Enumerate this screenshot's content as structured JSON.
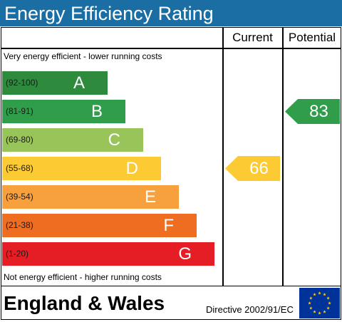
{
  "title": "Energy Efficiency Rating",
  "columns": {
    "current": "Current",
    "potential": "Potential"
  },
  "top_note": "Very energy efficient - lower running costs",
  "bottom_note": "Not energy efficient - higher running costs",
  "footer": {
    "region": "England & Wales",
    "directive": "Directive 2002/91/EC"
  },
  "chart_data": {
    "type": "bar",
    "title": "Energy Efficiency Rating",
    "categories": [
      "A",
      "B",
      "C",
      "D",
      "E",
      "F",
      "G"
    ],
    "bands": [
      {
        "letter": "A",
        "range": "(92-100)",
        "min": 92,
        "max": 100,
        "color": "#2e8a3d"
      },
      {
        "letter": "B",
        "range": "(81-91)",
        "min": 81,
        "max": 91,
        "color": "#2f9d4a"
      },
      {
        "letter": "C",
        "range": "(69-80)",
        "min": 69,
        "max": 80,
        "color": "#99c45a"
      },
      {
        "letter": "D",
        "range": "(55-68)",
        "min": 55,
        "max": 68,
        "color": "#fccb33"
      },
      {
        "letter": "E",
        "range": "(39-54)",
        "min": 39,
        "max": 54,
        "color": "#f7a13e"
      },
      {
        "letter": "F",
        "range": "(21-38)",
        "min": 21,
        "max": 38,
        "color": "#ef6d20"
      },
      {
        "letter": "G",
        "range": "(1-20)",
        "min": 1,
        "max": 20,
        "color": "#e41e24"
      }
    ],
    "series": [
      {
        "name": "Current",
        "value": 66,
        "band": "D",
        "color": "#fccb33"
      },
      {
        "name": "Potential",
        "value": 83,
        "band": "B",
        "color": "#2f9d4a"
      }
    ]
  }
}
